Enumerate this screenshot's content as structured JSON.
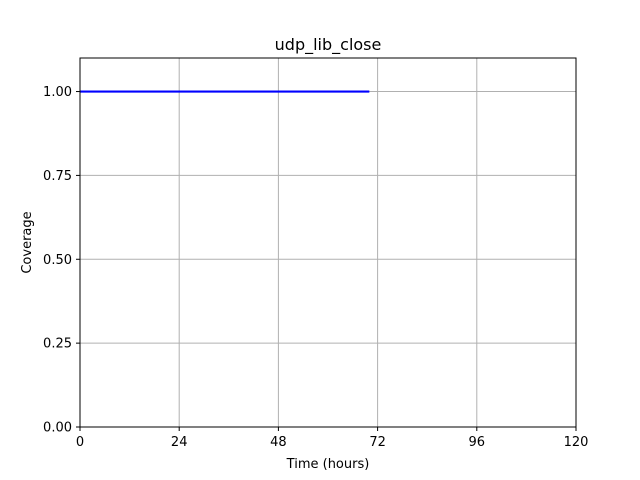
{
  "chart_data": {
    "type": "line",
    "title": "udp_lib_close",
    "xlabel": "Time (hours)",
    "ylabel": "Coverage",
    "xlim": [
      0,
      120
    ],
    "ylim": [
      0,
      1.1
    ],
    "xticks": [
      0,
      24,
      48,
      72,
      96,
      120
    ],
    "yticks": [
      0.0,
      0.25,
      0.5,
      0.75,
      1.0
    ],
    "xtick_labels": [
      "0",
      "24",
      "48",
      "72",
      "96",
      "120"
    ],
    "ytick_labels": [
      "0.00",
      "0.25",
      "0.50",
      "0.75",
      "1.00"
    ],
    "grid": true,
    "series": [
      {
        "color": "#0000ff",
        "x": [
          0,
          70
        ],
        "y": [
          1.0,
          1.0
        ]
      }
    ]
  }
}
